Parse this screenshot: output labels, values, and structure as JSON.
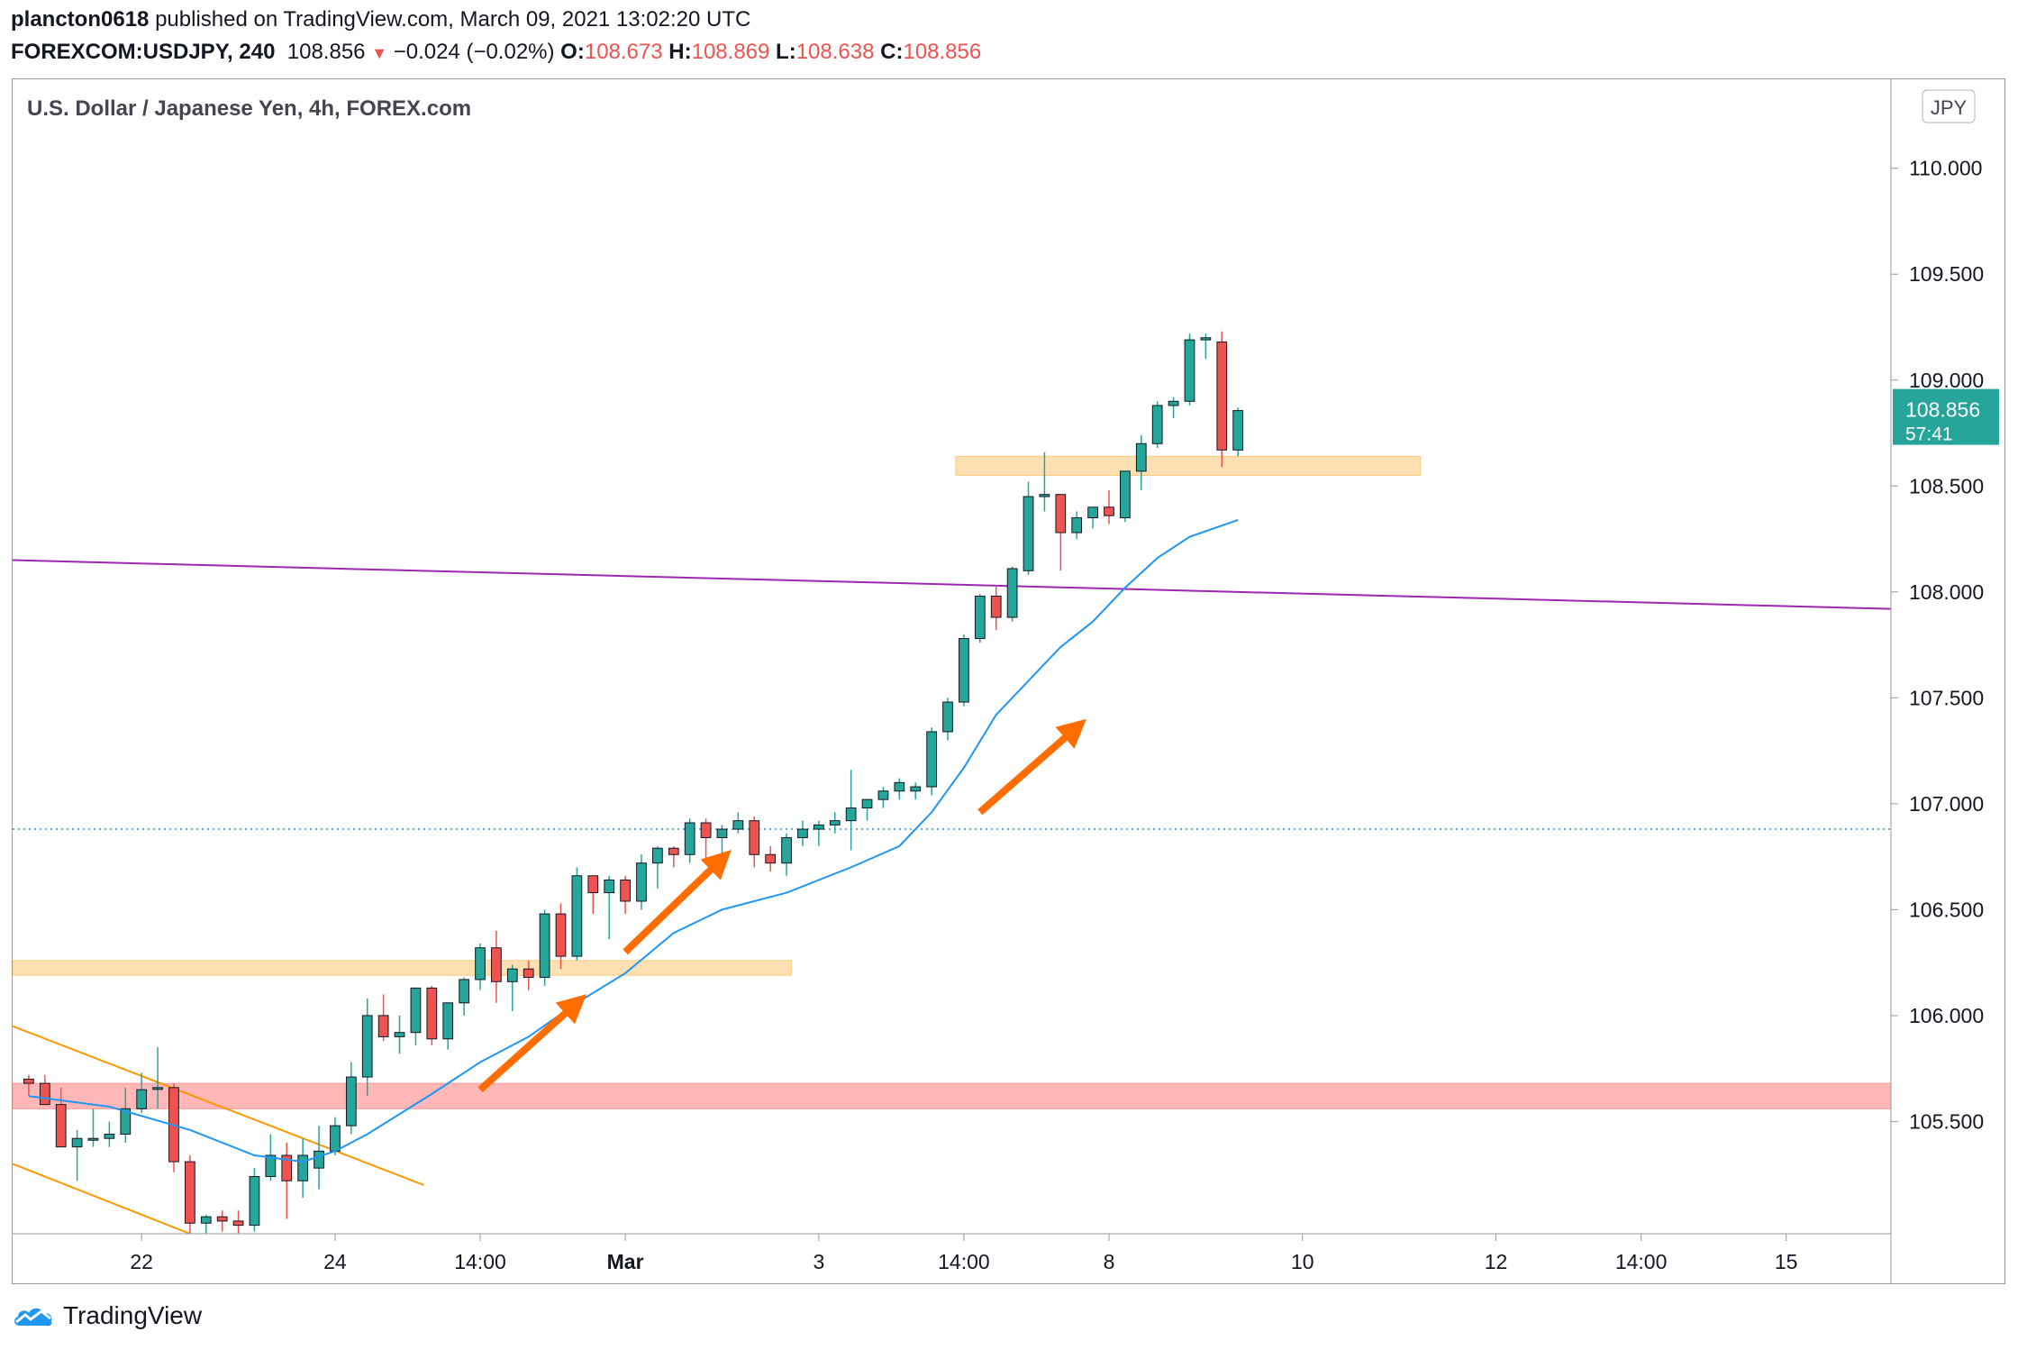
{
  "header": {
    "author": "plancton0618",
    "published_text": "published on TradingView.com, March 09, 2021 13:02:20 UTC",
    "symbol": "FOREXCOM:USDJPY, 240",
    "last": "108.856",
    "change": "−0.024 (−0.02%)",
    "o_label": "O:",
    "o_value": "108.673",
    "h_label": "H:",
    "h_value": "108.869",
    "l_label": "L:",
    "l_value": "108.638",
    "c_label": "C:",
    "c_value": "108.856"
  },
  "footer": {
    "brand": "TradingView"
  },
  "colors": {
    "up": "#26a69a",
    "down": "#ef5350",
    "ema": "#2196f3",
    "trend": "#9c27b0",
    "channel": "#ff9800",
    "zone_orange": "#ffcc80",
    "zone_red": "#ff9999",
    "arrow": "#ff6d00"
  },
  "chart_data": {
    "type": "candlestick",
    "title": "U.S. Dollar / Japanese Yen, 4h, FOREX.com",
    "currency": "JPY",
    "ylim": [
      104.97,
      110.42
    ],
    "y_ticks": [
      "110.000",
      "109.500",
      "109.000",
      "108.500",
      "108.000",
      "107.500",
      "107.000",
      "106.500",
      "106.000",
      "105.500"
    ],
    "x_ticks": [
      {
        "label": "22",
        "bar": 7,
        "bold": false
      },
      {
        "label": "24",
        "bar": 19,
        "bold": false
      },
      {
        "label": "14:00",
        "bar": 28,
        "bold": false
      },
      {
        "label": "Mar",
        "bar": 37,
        "bold": true
      },
      {
        "label": "3",
        "bar": 49,
        "bold": false
      },
      {
        "label": "14:00",
        "bar": 58,
        "bold": false
      },
      {
        "label": "8",
        "bar": 67,
        "bold": false
      },
      {
        "label": "10",
        "bar": 79,
        "bold": false
      },
      {
        "label": "12",
        "bar": 91,
        "bold": false
      },
      {
        "label": "14:00",
        "bar": 100,
        "bold": false
      },
      {
        "label": "15",
        "bar": 109,
        "bold": false
      }
    ],
    "bars_visible": 115.5,
    "last_price": {
      "value": 108.856,
      "label": "108.856",
      "countdown": "57:41"
    },
    "previous_close_line": 106.88,
    "candles": [
      [
        105.7,
        105.72,
        105.62,
        105.68
      ],
      [
        105.68,
        105.72,
        105.6,
        105.58
      ],
      [
        105.58,
        105.66,
        105.42,
        105.38
      ],
      [
        105.38,
        105.46,
        105.22,
        105.42
      ],
      [
        105.42,
        105.56,
        105.38,
        105.42
      ],
      [
        105.42,
        105.5,
        105.38,
        105.44
      ],
      [
        105.44,
        105.66,
        105.4,
        105.56
      ],
      [
        105.56,
        105.73,
        105.54,
        105.65
      ],
      [
        105.66,
        105.85,
        105.56,
        105.66
      ],
      [
        105.66,
        105.68,
        105.26,
        105.31
      ],
      [
        105.31,
        105.34,
        104.96,
        105.02
      ],
      [
        105.02,
        105.06,
        104.96,
        105.05
      ],
      [
        105.05,
        105.08,
        104.98,
        105.03
      ],
      [
        105.03,
        105.08,
        104.96,
        105.01
      ],
      [
        105.01,
        105.28,
        104.98,
        105.24
      ],
      [
        105.24,
        105.44,
        105.22,
        105.34
      ],
      [
        105.34,
        105.4,
        105.04,
        105.22
      ],
      [
        105.22,
        105.42,
        105.14,
        105.34
      ],
      [
        105.28,
        105.48,
        105.18,
        105.36
      ],
      [
        105.36,
        105.52,
        105.34,
        105.48
      ],
      [
        105.48,
        105.78,
        105.44,
        105.71
      ],
      [
        105.71,
        106.08,
        105.62,
        106.0
      ],
      [
        106.0,
        106.1,
        105.88,
        105.9
      ],
      [
        105.9,
        106.0,
        105.82,
        105.92
      ],
      [
        105.92,
        106.12,
        105.86,
        106.13
      ],
      [
        106.13,
        106.14,
        105.86,
        105.89
      ],
      [
        105.89,
        106.06,
        105.84,
        106.06
      ],
      [
        106.06,
        106.18,
        106.0,
        106.17
      ],
      [
        106.17,
        106.34,
        106.12,
        106.32
      ],
      [
        106.32,
        106.4,
        106.06,
        106.16
      ],
      [
        106.16,
        106.24,
        106.02,
        106.22
      ],
      [
        106.22,
        106.26,
        106.12,
        106.18
      ],
      [
        106.18,
        106.5,
        106.14,
        106.48
      ],
      [
        106.48,
        106.53,
        106.22,
        106.28
      ],
      [
        106.28,
        106.7,
        106.26,
        106.66
      ],
      [
        106.66,
        106.66,
        106.48,
        106.58
      ],
      [
        106.58,
        106.66,
        106.36,
        106.64
      ],
      [
        106.64,
        106.66,
        106.48,
        106.54
      ],
      [
        106.54,
        106.76,
        106.5,
        106.72
      ],
      [
        106.72,
        106.8,
        106.6,
        106.79
      ],
      [
        106.79,
        106.8,
        106.7,
        106.76
      ],
      [
        106.76,
        106.93,
        106.72,
        106.91
      ],
      [
        106.91,
        106.93,
        106.72,
        106.84
      ],
      [
        106.84,
        106.9,
        106.76,
        106.88
      ],
      [
        106.88,
        106.96,
        106.86,
        106.92
      ],
      [
        106.92,
        106.94,
        106.7,
        106.76
      ],
      [
        106.76,
        106.8,
        106.68,
        106.72
      ],
      [
        106.72,
        106.86,
        106.66,
        106.84
      ],
      [
        106.84,
        106.92,
        106.8,
        106.88
      ],
      [
        106.88,
        106.92,
        106.8,
        106.9
      ],
      [
        106.9,
        106.96,
        106.86,
        106.92
      ],
      [
        106.92,
        107.16,
        106.78,
        106.98
      ],
      [
        106.98,
        107.02,
        106.92,
        107.02
      ],
      [
        107.02,
        107.08,
        106.98,
        107.06
      ],
      [
        107.06,
        107.12,
        107.02,
        107.1
      ],
      [
        107.06,
        107.1,
        107.02,
        107.08
      ],
      [
        107.08,
        107.36,
        107.04,
        107.34
      ],
      [
        107.34,
        107.5,
        107.3,
        107.48
      ],
      [
        107.48,
        107.8,
        107.46,
        107.78
      ],
      [
        107.78,
        107.99,
        107.76,
        107.98
      ],
      [
        107.98,
        108.03,
        107.82,
        107.88
      ],
      [
        107.88,
        108.12,
        107.86,
        108.11
      ],
      [
        108.1,
        108.52,
        108.08,
        108.45
      ],
      [
        108.45,
        108.66,
        108.38,
        108.46
      ],
      [
        108.46,
        108.46,
        108.1,
        108.28
      ],
      [
        108.28,
        108.38,
        108.25,
        108.35
      ],
      [
        108.35,
        108.4,
        108.3,
        108.4
      ],
      [
        108.4,
        108.48,
        108.32,
        108.36
      ],
      [
        108.35,
        108.57,
        108.33,
        108.57
      ],
      [
        108.57,
        108.74,
        108.48,
        108.7
      ],
      [
        108.7,
        108.9,
        108.68,
        108.88
      ],
      [
        108.88,
        108.92,
        108.82,
        108.9
      ],
      [
        108.9,
        109.22,
        108.88,
        109.19
      ],
      [
        109.19,
        109.22,
        109.1,
        109.2
      ],
      [
        109.18,
        109.23,
        108.59,
        108.67
      ],
      [
        108.67,
        108.87,
        108.64,
        108.856
      ]
    ],
    "ema": [
      [
        0,
        105.62
      ],
      [
        5,
        105.57
      ],
      [
        10,
        105.46
      ],
      [
        14,
        105.34
      ],
      [
        17,
        105.31
      ],
      [
        19,
        105.36
      ],
      [
        21,
        105.44
      ],
      [
        25,
        105.63
      ],
      [
        28,
        105.78
      ],
      [
        31,
        105.9
      ],
      [
        34,
        106.06
      ],
      [
        37,
        106.2
      ],
      [
        40,
        106.39
      ],
      [
        43,
        106.5
      ],
      [
        47,
        106.58
      ],
      [
        51,
        106.7
      ],
      [
        54,
        106.8
      ],
      [
        56,
        106.96
      ],
      [
        58,
        107.17
      ],
      [
        60,
        107.42
      ],
      [
        62,
        107.58
      ],
      [
        64,
        107.74
      ],
      [
        66,
        107.86
      ],
      [
        68,
        108.02
      ],
      [
        70,
        108.16
      ],
      [
        72,
        108.26
      ],
      [
        75,
        108.34
      ]
    ],
    "trendline": [
      [
        -1,
        108.15
      ],
      [
        115.5,
        107.92
      ]
    ],
    "channel_upper": [
      [
        -1,
        105.95
      ],
      [
        24.5,
        105.2
      ]
    ],
    "channel_lower": [
      [
        -1,
        105.3
      ],
      [
        10,
        104.97
      ]
    ],
    "zones": [
      {
        "y1": 108.55,
        "y2": 108.64,
        "x1": 57.5,
        "x2": 86.3,
        "color": "#ffcc80"
      },
      {
        "y1": 106.19,
        "y2": 106.26,
        "x1": -1,
        "x2": 47.3,
        "color": "#ffcc80"
      },
      {
        "y1": 105.56,
        "y2": 105.68,
        "x1": -1,
        "x2": 115.5,
        "color": "#ff9999"
      }
    ],
    "arrows": [
      [
        [
          28,
          105.65
        ],
        [
          34,
          106.06
        ]
      ],
      [
        [
          37,
          106.3
        ],
        [
          43,
          106.74
        ]
      ],
      [
        [
          59,
          106.96
        ],
        [
          65,
          107.36
        ]
      ]
    ]
  }
}
